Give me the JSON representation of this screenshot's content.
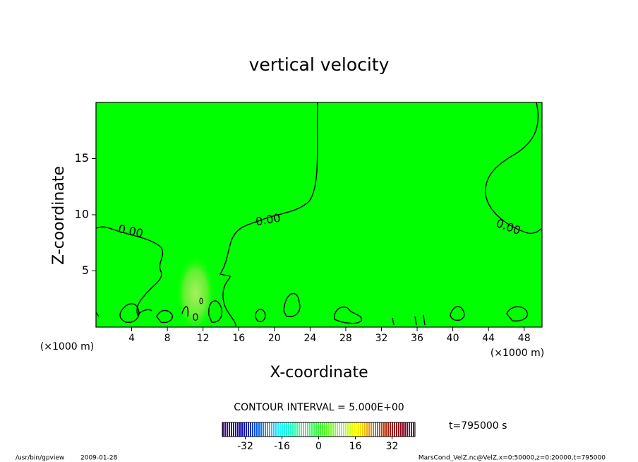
{
  "chart_data": {
    "type": "contour",
    "title": "vertical velocity",
    "x_label": "X-coordinate",
    "y_label": "Z-coordinate",
    "x_unit": "(×1000 m)",
    "y_unit": "(×1000 m)",
    "xlim": [
      0,
      50
    ],
    "xticks": [
      4,
      8,
      12,
      16,
      20,
      24,
      28,
      32,
      36,
      40,
      44,
      48
    ],
    "ylim": [
      0,
      20
    ],
    "yticks": [
      5,
      10,
      15
    ],
    "contour_labels": [
      "0.00",
      "0.00",
      "0.00",
      "0"
    ],
    "contour_interval": "CONTOUR INTERVAL = 5.000E+00",
    "colorbar": {
      "lim": [
        -42,
        42
      ],
      "ticks": [
        -32,
        -16,
        0,
        16,
        32
      ]
    },
    "time": "t=795000 s"
  },
  "footer": {
    "program": "/usr/bin/gpview",
    "date": "2009-01-28",
    "source": "MarsCond_VelZ.nc@VelZ,x=0:50000,z=0:20000,t=795000"
  }
}
